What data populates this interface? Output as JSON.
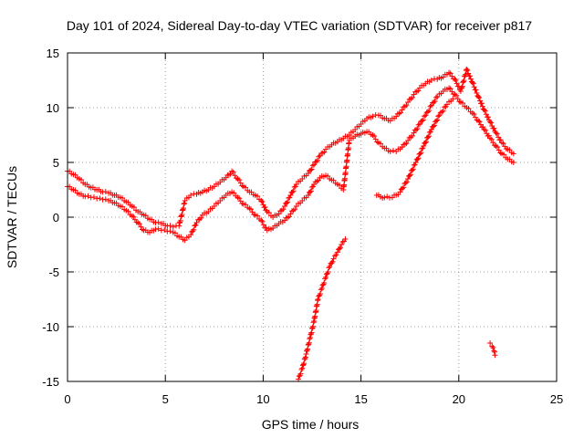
{
  "chart_data": {
    "type": "scatter",
    "title": "Day 101 of 2024, Sidereal Day-to-day VTEC variation (SDTVAR) for receiver p817",
    "xlabel": "GPS time / hours",
    "ylabel": "SDTVAR / TECUs",
    "xlim": [
      0,
      25
    ],
    "ylim": [
      -15,
      15
    ],
    "xticks": [
      0,
      5,
      10,
      15,
      20,
      25
    ],
    "yticks": [
      -15,
      -10,
      -5,
      0,
      5,
      10,
      15
    ],
    "xtick_labels": [
      "0",
      "5",
      "10",
      "15",
      "20",
      "25"
    ],
    "ytick_labels": [
      "-15",
      "-10",
      "-5",
      "0",
      "5",
      "10",
      "15"
    ],
    "grid": true,
    "marker": "+",
    "series": [
      {
        "name": "main-trace-upper",
        "color": "#ff0000",
        "points": [
          [
            0.0,
            4.2
          ],
          [
            0.3,
            3.9
          ],
          [
            0.6,
            3.5
          ],
          [
            0.9,
            3.0
          ],
          [
            1.2,
            2.7
          ],
          [
            1.5,
            2.5
          ],
          [
            1.8,
            2.3
          ],
          [
            2.1,
            2.2
          ],
          [
            2.4,
            2.0
          ],
          [
            2.7,
            1.8
          ],
          [
            3.0,
            1.4
          ],
          [
            3.3,
            1.0
          ],
          [
            3.6,
            0.5
          ],
          [
            3.9,
            0.2
          ],
          [
            4.2,
            -0.2
          ],
          [
            4.5,
            -0.5
          ],
          [
            4.8,
            -0.6
          ],
          [
            5.1,
            -0.8
          ],
          [
            5.4,
            -0.9
          ],
          [
            5.7,
            -0.8
          ],
          [
            6.0,
            1.5
          ],
          [
            6.3,
            2.0
          ],
          [
            6.6,
            2.1
          ],
          [
            6.9,
            2.3
          ],
          [
            7.2,
            2.5
          ],
          [
            7.5,
            2.8
          ],
          [
            7.8,
            3.2
          ],
          [
            8.1,
            3.6
          ],
          [
            8.4,
            4.2
          ],
          [
            8.7,
            3.5
          ],
          [
            9.0,
            2.8
          ],
          [
            9.3,
            2.3
          ],
          [
            9.6,
            2.0
          ],
          [
            9.9,
            1.5
          ],
          [
            10.2,
            0.5
          ],
          [
            10.5,
            0.0
          ],
          [
            10.8,
            0.3
          ],
          [
            11.1,
            1.0
          ],
          [
            11.4,
            2.0
          ],
          [
            11.7,
            3.0
          ],
          [
            12.0,
            3.5
          ],
          [
            12.3,
            4.0
          ],
          [
            12.6,
            4.8
          ],
          [
            12.9,
            5.6
          ],
          [
            13.2,
            6.2
          ],
          [
            13.5,
            6.6
          ],
          [
            13.8,
            6.9
          ],
          [
            14.1,
            7.2
          ],
          [
            14.4,
            7.5
          ],
          [
            14.7,
            8.0
          ],
          [
            15.0,
            8.5
          ],
          [
            15.3,
            9.0
          ],
          [
            15.6,
            9.2
          ],
          [
            15.9,
            9.3
          ],
          [
            16.2,
            9.0
          ],
          [
            16.5,
            8.8
          ],
          [
            16.8,
            9.2
          ],
          [
            17.1,
            9.8
          ],
          [
            17.4,
            10.5
          ],
          [
            17.7,
            11.2
          ],
          [
            18.0,
            11.8
          ],
          [
            18.3,
            12.2
          ],
          [
            18.6,
            12.5
          ],
          [
            18.9,
            12.6
          ],
          [
            19.2,
            12.8
          ],
          [
            19.5,
            13.2
          ],
          [
            19.8,
            12.6
          ],
          [
            20.1,
            11.5
          ],
          [
            20.4,
            13.5
          ],
          [
            20.7,
            12.3
          ],
          [
            21.0,
            11.0
          ],
          [
            21.3,
            9.8
          ],
          [
            21.6,
            8.7
          ],
          [
            21.9,
            7.7
          ],
          [
            22.2,
            6.8
          ],
          [
            22.5,
            6.2
          ],
          [
            22.8,
            5.8
          ]
        ]
      },
      {
        "name": "main-trace-lower",
        "color": "#ff0000",
        "points": [
          [
            0.0,
            2.8
          ],
          [
            0.3,
            2.5
          ],
          [
            0.6,
            2.1
          ],
          [
            0.9,
            1.9
          ],
          [
            1.2,
            1.8
          ],
          [
            1.5,
            1.7
          ],
          [
            1.8,
            1.6
          ],
          [
            2.1,
            1.5
          ],
          [
            2.4,
            1.3
          ],
          [
            2.7,
            1.0
          ],
          [
            3.0,
            0.6
          ],
          [
            3.3,
            0.1
          ],
          [
            3.6,
            -0.5
          ],
          [
            3.9,
            -1.2
          ],
          [
            4.2,
            -1.4
          ],
          [
            4.5,
            -1.1
          ],
          [
            4.8,
            -1.2
          ],
          [
            5.1,
            -1.3
          ],
          [
            5.4,
            -1.4
          ],
          [
            5.7,
            -1.8
          ],
          [
            6.0,
            -2.1
          ],
          [
            6.3,
            -1.6
          ],
          [
            6.6,
            -0.5
          ],
          [
            6.9,
            0.2
          ],
          [
            7.2,
            0.5
          ],
          [
            7.5,
            1.0
          ],
          [
            7.8,
            1.5
          ],
          [
            8.1,
            2.0
          ],
          [
            8.4,
            2.3
          ],
          [
            8.7,
            1.8
          ],
          [
            9.0,
            1.2
          ],
          [
            9.3,
            0.8
          ],
          [
            9.6,
            0.2
          ],
          [
            9.9,
            -0.3
          ],
          [
            10.2,
            -1.2
          ],
          [
            10.5,
            -1.0
          ],
          [
            10.8,
            -0.6
          ],
          [
            11.1,
            -0.3
          ],
          [
            11.4,
            0.3
          ],
          [
            11.7,
            1.0
          ],
          [
            12.0,
            1.5
          ],
          [
            12.3,
            2.0
          ],
          [
            12.6,
            3.0
          ],
          [
            12.9,
            3.6
          ],
          [
            13.2,
            3.8
          ],
          [
            13.5,
            3.4
          ],
          [
            13.8,
            3.0
          ],
          [
            14.1,
            2.5
          ],
          [
            14.4,
            7.0
          ],
          [
            14.7,
            7.4
          ],
          [
            15.0,
            7.6
          ],
          [
            15.3,
            7.8
          ],
          [
            15.6,
            7.5
          ],
          [
            15.9,
            6.8
          ],
          [
            16.2,
            6.3
          ],
          [
            16.5,
            6.0
          ],
          [
            16.8,
            6.0
          ],
          [
            17.1,
            6.4
          ],
          [
            17.4,
            7.0
          ],
          [
            17.7,
            7.7
          ],
          [
            18.0,
            8.5
          ],
          [
            18.3,
            9.3
          ],
          [
            18.6,
            10.2
          ],
          [
            18.9,
            11.0
          ],
          [
            19.2,
            11.5
          ],
          [
            19.5,
            11.8
          ],
          [
            19.8,
            11.2
          ],
          [
            20.1,
            10.5
          ],
          [
            20.4,
            10.0
          ],
          [
            20.7,
            9.5
          ],
          [
            21.0,
            8.8
          ],
          [
            21.3,
            8.0
          ],
          [
            21.6,
            7.2
          ],
          [
            21.9,
            6.5
          ],
          [
            22.2,
            5.8
          ],
          [
            22.5,
            5.3
          ],
          [
            22.8,
            5.0
          ]
        ]
      },
      {
        "name": "late-rise-trace",
        "color": "#ff0000",
        "points": [
          [
            15.8,
            2.0
          ],
          [
            16.2,
            1.8
          ],
          [
            16.6,
            1.8
          ],
          [
            17.0,
            2.3
          ],
          [
            17.4,
            3.5
          ],
          [
            17.8,
            5.0
          ],
          [
            18.2,
            6.5
          ],
          [
            18.6,
            8.0
          ],
          [
            19.0,
            9.3
          ],
          [
            19.4,
            10.3
          ],
          [
            19.7,
            10.8
          ]
        ]
      },
      {
        "name": "steep-descent-trace",
        "color": "#ff0000",
        "points": [
          [
            11.8,
            -14.8
          ],
          [
            12.0,
            -13.8
          ],
          [
            12.2,
            -12.5
          ],
          [
            12.4,
            -11.0
          ],
          [
            12.6,
            -9.5
          ],
          [
            12.8,
            -7.5
          ],
          [
            13.0,
            -6.5
          ],
          [
            13.2,
            -5.5
          ],
          [
            13.4,
            -4.5
          ],
          [
            13.6,
            -3.8
          ],
          [
            13.8,
            -3.2
          ],
          [
            14.0,
            -2.5
          ],
          [
            14.2,
            -2.0
          ]
        ]
      },
      {
        "name": "isolated-trace",
        "color": "#ff0000",
        "points": [
          [
            21.6,
            -11.5
          ],
          [
            21.7,
            -11.8
          ],
          [
            21.8,
            -12.2
          ],
          [
            21.85,
            -12.6
          ]
        ]
      }
    ]
  }
}
